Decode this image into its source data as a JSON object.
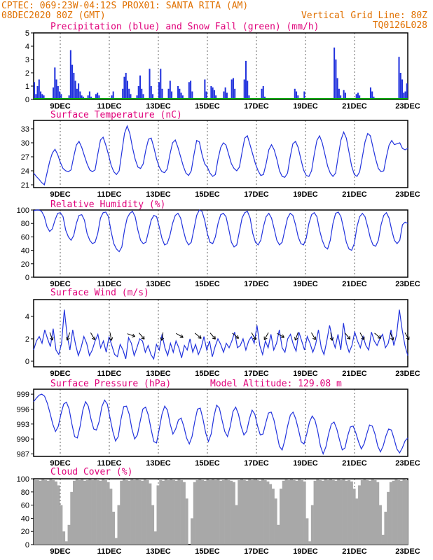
{
  "header": {
    "line1": "CPTEC:   069:23W-04:12S   PROX01: SANTA RITA (AM)",
    "line2_left": "08DEC2020 80Z (GMT)",
    "line2_right": "Vertical Grid Line: 80Z",
    "code": "TQ0126L028"
  },
  "colors": {
    "header": "#e07000",
    "panel_title": "#e0007a",
    "series_blue": "#2233dd",
    "snow_green": "#00aa00",
    "cloud_gray": "#a8a8a8"
  },
  "chart_data": [
    {
      "id": "precip",
      "type": "bar",
      "title": "Precipitation (blue) and Snow Fall (green) (mm/h)",
      "ylim": [
        0,
        5
      ],
      "yticks": [
        "0",
        "1",
        "2",
        "3",
        "4",
        "5"
      ],
      "xticks": [
        "9DEC",
        "11DEC",
        "13DEC",
        "15DEC",
        "17DEC",
        "19DEC",
        "21DEC",
        "23DEC"
      ],
      "series": [
        {
          "name": "Precipitation",
          "color": "#2233dd",
          "values": [
            1.3,
            0.4,
            1.0,
            1.5,
            0.6,
            0.4,
            0.3,
            0.1,
            0,
            0,
            0,
            0,
            0.9,
            2.4,
            1.5,
            1.0,
            0.6,
            0.4,
            0,
            0,
            0,
            0,
            0.3,
            3.7,
            2.6,
            2.0,
            1.4,
            0.8,
            1.2,
            0.6,
            0.3,
            0.2,
            0,
            0,
            0.3,
            0.6,
            0.2,
            0,
            0,
            0.4,
            0.5,
            0.3,
            0,
            0,
            0,
            0,
            0,
            0,
            0,
            0.3,
            0.6,
            0,
            0,
            0,
            0,
            0,
            0.8,
            1.7,
            2.0,
            1.4,
            0.8,
            0.4,
            0,
            0,
            0,
            0.3,
            1.0,
            1.8,
            0.8,
            0.4,
            0,
            0,
            0,
            2.3,
            1.0,
            0.4,
            0,
            0,
            0,
            1.3,
            2.3,
            0.8,
            0,
            0,
            0,
            0.8,
            1.4,
            0.6,
            0,
            0,
            0,
            1.0,
            0.8,
            0.5,
            0.3,
            0,
            0,
            0,
            1.3,
            1.4,
            0.6,
            0,
            0,
            0,
            0,
            0,
            0,
            0,
            1.5,
            0.6,
            0,
            0,
            1.0,
            0.9,
            0.7,
            0.3,
            0,
            0,
            0,
            0,
            0.6,
            0.9,
            0.5,
            0,
            0,
            1.5,
            1.6,
            0.8,
            0,
            0,
            0,
            0,
            0,
            1.5,
            2.9,
            1.4,
            0.3,
            0,
            0,
            0,
            0,
            0,
            0,
            0,
            0.8,
            1.0,
            0.2,
            0,
            0,
            0,
            0,
            0,
            0,
            0,
            0,
            0,
            0,
            0,
            0,
            0,
            0,
            0,
            0,
            0,
            0,
            0.8,
            0.6,
            0.3,
            0,
            0,
            0,
            0.6,
            0,
            0,
            0,
            0,
            0,
            0,
            0,
            0,
            0,
            0,
            0,
            0,
            0,
            0,
            0,
            0,
            0,
            0,
            3.9,
            3.0,
            1.6,
            0.8,
            0.3,
            0,
            0.7,
            0.5,
            0,
            0,
            0,
            0,
            0,
            0,
            0.4,
            0.5,
            0.3,
            0,
            0,
            0,
            0,
            0,
            0,
            0.9,
            0.6,
            0.2,
            0,
            0,
            0,
            0,
            0,
            0,
            0,
            0,
            0,
            0,
            0,
            0,
            0,
            0,
            0,
            3.2,
            2.0,
            1.5,
            0.5,
            0.6,
            1.2
          ]
        },
        {
          "name": "Snow Fall",
          "color": "#00aa00",
          "values": [
            0
          ]
        }
      ]
    },
    {
      "id": "temp",
      "type": "line",
      "title": "Surface Temperature (nC)",
      "ylim": [
        20.4,
        34.8
      ],
      "yticks": [
        "21",
        "24",
        "27",
        "30",
        "33"
      ],
      "yticks_values": [
        21,
        24,
        27,
        30,
        33
      ],
      "xticks": [
        "9DEC",
        "11DEC",
        "13DEC",
        "15DEC",
        "17DEC",
        "19DEC",
        "21DEC",
        "23DEC"
      ],
      "values": [
        23.5,
        22.8,
        22.2,
        21.5,
        21.0,
        23.5,
        26.0,
        27.8,
        28.6,
        27.5,
        25.8,
        24.5,
        24.0,
        23.8,
        24.2,
        27.0,
        29.5,
        30.3,
        29.0,
        27.2,
        25.5,
        24.2,
        23.8,
        24.2,
        27.5,
        30.6,
        31.2,
        29.5,
        27.5,
        25.2,
        23.8,
        23.2,
        24.0,
        28.0,
        32.0,
        33.6,
        32.0,
        29.0,
        26.5,
        24.8,
        24.5,
        25.5,
        28.5,
        30.8,
        31.0,
        29.0,
        26.5,
        24.8,
        23.8,
        23.6,
        24.4,
        27.5,
        30.0,
        30.6,
        29.0,
        27.0,
        25.0,
        23.5,
        23.0,
        24.0,
        27.5,
        30.5,
        30.2,
        27.5,
        25.5,
        24.8,
        23.5,
        22.8,
        23.2,
        26.5,
        29.0,
        30.0,
        29.5,
        27.5,
        25.5,
        24.5,
        24.0,
        24.8,
        28.0,
        31.0,
        31.5,
        29.5,
        27.5,
        25.5,
        24.0,
        23.0,
        23.2,
        25.5,
        28.5,
        29.6,
        28.5,
        26.5,
        24.0,
        22.8,
        22.6,
        23.5,
        27.0,
        29.8,
        30.3,
        29.0,
        26.5,
        24.2,
        23.0,
        22.8,
        24.0,
        27.5,
        30.5,
        31.5,
        30.0,
        27.5,
        25.0,
        23.5,
        22.8,
        23.5,
        27.2,
        30.6,
        32.3,
        31.0,
        28.0,
        25.0,
        23.2,
        22.8,
        23.8,
        27.0,
        30.2,
        32.0,
        31.5,
        29.0,
        26.5,
        24.5,
        23.8,
        24.0,
        27.0,
        29.5,
        30.5,
        29.6,
        29.8,
        30.0,
        28.8,
        28.5,
        28.8
      ]
    },
    {
      "id": "rh",
      "type": "line",
      "title": "Relative Humidity (%)",
      "ylim": [
        0,
        100
      ],
      "yticks": [
        "0",
        "20",
        "40",
        "60",
        "80",
        "100"
      ],
      "xticks": [
        "9DEC",
        "11DEC",
        "13DEC",
        "15DEC",
        "17DEC",
        "19DEC",
        "21DEC",
        "23DEC"
      ],
      "values": [
        99,
        100,
        100,
        98,
        90,
        75,
        68,
        72,
        85,
        95,
        96,
        90,
        70,
        60,
        55,
        62,
        80,
        92,
        93,
        85,
        65,
        55,
        50,
        52,
        65,
        88,
        96,
        97,
        90,
        68,
        50,
        42,
        38,
        45,
        70,
        88,
        95,
        98,
        90,
        70,
        55,
        50,
        52,
        68,
        85,
        92,
        90,
        75,
        58,
        48,
        50,
        62,
        80,
        92,
        95,
        88,
        70,
        55,
        48,
        52,
        72,
        92,
        100,
        98,
        85,
        65,
        52,
        50,
        60,
        80,
        93,
        95,
        90,
        72,
        52,
        45,
        48,
        68,
        88,
        96,
        98,
        88,
        65,
        52,
        48,
        55,
        75,
        90,
        95,
        88,
        72,
        55,
        48,
        52,
        70,
        88,
        95,
        92,
        78,
        60,
        50,
        48,
        58,
        80,
        93,
        96,
        90,
        70,
        55,
        45,
        42,
        55,
        80,
        95,
        97,
        90,
        72,
        52,
        42,
        40,
        50,
        75,
        90,
        95,
        90,
        75,
        58,
        48,
        46,
        55,
        78,
        92,
        96,
        88,
        70,
        55,
        50,
        55,
        78,
        82,
        80
      ]
    },
    {
      "id": "wind",
      "type": "line",
      "title": "Surface Wind (m/s)",
      "ylim": [
        -0.5,
        5.5
      ],
      "yticks": [
        "0",
        "2",
        "4"
      ],
      "yticks_values": [
        0,
        2,
        4
      ],
      "xticks": [
        "9DEC",
        "11DEC",
        "13DEC",
        "15DEC",
        "17DEC",
        "19DEC",
        "21DEC",
        "23DEC"
      ],
      "values": [
        1.0,
        1.8,
        2.2,
        1.6,
        2.8,
        2.0,
        1.3,
        2.9,
        1.0,
        0.6,
        1.6,
        4.6,
        2.3,
        1.0,
        2.8,
        1.5,
        0.5,
        1.2,
        2.2,
        1.6,
        0.5,
        1.0,
        1.8,
        2.4,
        1.2,
        1.8,
        0.8,
        2.2,
        1.4,
        0.6,
        0.4,
        1.5,
        1.0,
        0.2,
        2.1,
        1.6,
        0.5,
        1.2,
        2.0,
        1.8,
        0.8,
        1.4,
        0.6,
        0.2,
        1.5,
        1.0,
        2.4,
        1.2,
        0.5,
        1.6,
        0.8,
        1.8,
        1.2,
        0.3,
        1.4,
        1.0,
        2.0,
        0.8,
        1.5,
        0.6,
        1.2,
        2.2,
        1.0,
        1.8,
        0.4,
        1.3,
        2.0,
        1.5,
        0.8,
        1.6,
        1.2,
        1.8,
        2.6,
        1.2,
        1.4,
        2.0,
        1.0,
        1.8,
        2.2,
        1.6,
        3.2,
        1.4,
        0.6,
        1.8,
        1.2,
        2.4,
        1.0,
        1.6,
        2.8,
        1.2,
        0.8,
        2.0,
        2.4,
        1.5,
        0.9,
        2.6,
        1.8,
        1.0,
        2.2,
        1.6,
        0.8,
        1.5,
        2.8,
        1.2,
        0.6,
        1.8,
        3.2,
        2.0,
        1.2,
        2.4,
        1.0,
        3.4,
        1.6,
        0.8,
        1.4,
        2.6,
        1.8,
        1.2,
        2.2,
        1.4,
        1.0,
        2.6,
        1.8,
        1.4,
        2.0,
        2.4,
        1.2,
        1.6,
        2.8,
        1.4,
        2.4,
        4.6,
        2.8,
        1.4,
        0.5
      ],
      "arrows": [
        [
          0.045,
          160
        ],
        [
          0.095,
          200
        ],
        [
          0.155,
          150
        ],
        [
          0.205,
          170
        ],
        [
          0.255,
          110
        ],
        [
          0.285,
          140
        ],
        [
          0.345,
          190
        ],
        [
          0.385,
          120
        ],
        [
          0.435,
          130
        ],
        [
          0.475,
          140
        ],
        [
          0.535,
          130
        ],
        [
          0.585,
          150
        ],
        [
          0.625,
          210
        ],
        [
          0.655,
          120
        ],
        [
          0.705,
          200
        ],
        [
          0.745,
          150
        ],
        [
          0.795,
          170
        ],
        [
          0.835,
          140
        ],
        [
          0.875,
          150
        ],
        [
          0.915,
          130
        ],
        [
          0.955,
          160
        ],
        [
          0.995,
          150
        ]
      ]
    },
    {
      "id": "pres",
      "type": "line",
      "title": "Surface Pressure (hPa)",
      "subtitle": "Model Altitude: 129.08 m",
      "ylim": [
        986.5,
        1000
      ],
      "yticks": [
        "987",
        "990",
        "993",
        "996",
        "999"
      ],
      "yticks_values": [
        987,
        990,
        993,
        996,
        999
      ],
      "xticks": [
        "9DEC",
        "11DEC",
        "13DEC",
        "15DEC",
        "17DEC",
        "19DEC",
        "21DEC",
        "23DEC"
      ],
      "values": [
        997.5,
        998.2,
        998.8,
        999.0,
        998.6,
        997.2,
        995.2,
        993.0,
        991.5,
        992.5,
        995.0,
        997.0,
        997.4,
        996.0,
        993.0,
        990.5,
        990.2,
        992.5,
        995.8,
        997.5,
        996.6,
        994.0,
        992.0,
        991.8,
        993.5,
        996.5,
        997.8,
        997.0,
        994.2,
        991.5,
        989.6,
        990.5,
        994.0,
        996.5,
        996.6,
        995.0,
        992.0,
        990.0,
        990.8,
        993.5,
        996.0,
        996.4,
        994.8,
        992.0,
        989.5,
        989.2,
        992.0,
        995.0,
        996.6,
        995.8,
        993.0,
        991.0,
        992.0,
        993.8,
        994.2,
        992.5,
        990.2,
        989.0,
        990.5,
        993.5,
        996.0,
        996.2,
        994.0,
        991.2,
        989.5,
        991.0,
        994.5,
        996.8,
        996.2,
        993.8,
        991.5,
        990.5,
        992.5,
        995.5,
        996.4,
        995.0,
        992.5,
        990.8,
        991.5,
        994.0,
        995.8,
        995.0,
        992.6,
        990.8,
        991.0,
        993.2,
        995.2,
        995.4,
        993.8,
        991.2,
        988.5,
        987.8,
        989.8,
        992.6,
        994.8,
        995.4,
        994.0,
        991.8,
        989.4,
        989.0,
        991.0,
        993.4,
        994.6,
        993.8,
        991.6,
        988.6,
        987.0,
        988.4,
        991.0,
        993.0,
        993.4,
        992.0,
        989.8,
        987.8,
        988.2,
        990.6,
        992.4,
        992.6,
        991.2,
        989.4,
        988.0,
        989.0,
        991.0,
        992.8,
        992.6,
        991.0,
        988.6,
        987.4,
        988.6,
        990.6,
        992.0,
        991.8,
        990.0,
        988.0,
        987.2,
        988.2,
        989.6,
        990.2
      ]
    },
    {
      "id": "cloud",
      "type": "area",
      "title": "Cloud Cover (%)",
      "ylim": [
        0,
        100
      ],
      "yticks": [
        "0",
        "20",
        "40",
        "60",
        "80",
        "100"
      ],
      "xticks": [
        "9DEC",
        "11DEC",
        "13DEC",
        "15DEC",
        "17DEC",
        "19DEC",
        "21DEC",
        "23DEC"
      ],
      "values": [
        98,
        98,
        97,
        99,
        98,
        97,
        99,
        98,
        96,
        90,
        60,
        20,
        5,
        30,
        80,
        97,
        99,
        98,
        99,
        97,
        98,
        99,
        98,
        99,
        98,
        97,
        99,
        98,
        95,
        85,
        50,
        10,
        60,
        97,
        99,
        98,
        97,
        99,
        98,
        99,
        98,
        97,
        99,
        98,
        93,
        60,
        20,
        90,
        98,
        97,
        99,
        98,
        99,
        98,
        97,
        99,
        98,
        95,
        70,
        0,
        40,
        95,
        98,
        99,
        98,
        97,
        99,
        98,
        99,
        98,
        99,
        97,
        98,
        99,
        98,
        97,
        95,
        60,
        98,
        99,
        98,
        97,
        99,
        98,
        99,
        98,
        97,
        99,
        98,
        96,
        92,
        85,
        70,
        30,
        85,
        97,
        99,
        98,
        99,
        98,
        97,
        99,
        98,
        96,
        40,
        5,
        60,
        97,
        99,
        98,
        97,
        99,
        98,
        99,
        98,
        97,
        99,
        98,
        99,
        97,
        98,
        96,
        85,
        70,
        90,
        98,
        99,
        98,
        97,
        99,
        98,
        95,
        60,
        15,
        50,
        80,
        95,
        97,
        99,
        98,
        97,
        99,
        98
      ]
    }
  ]
}
